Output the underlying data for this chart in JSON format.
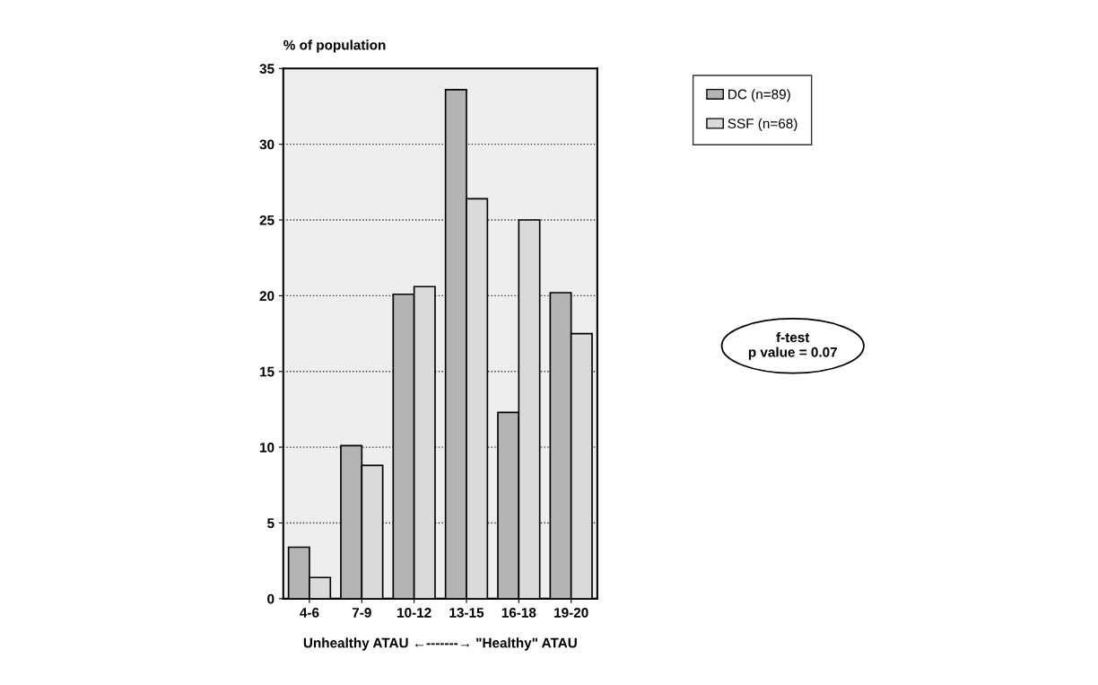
{
  "chart_data": {
    "type": "bar",
    "ylabel": "% of population",
    "xlabel": "Unhealthy ATAU ←-------→ \"Healthy\" ATAU",
    "categories": [
      "4-6",
      "7-9",
      "10-12",
      "13-15",
      "16-18",
      "19-20"
    ],
    "series": [
      {
        "name": "DC (n=89)",
        "color": "#b4b4b4",
        "values": [
          3.4,
          10.1,
          20.1,
          33.6,
          12.3,
          20.2
        ]
      },
      {
        "name": "SSF (n=68)",
        "color": "#dadada",
        "values": [
          1.4,
          8.8,
          20.6,
          26.4,
          25.0,
          17.5
        ]
      }
    ],
    "ylim": [
      0,
      35
    ],
    "yticks": [
      0,
      5,
      10,
      15,
      20,
      25,
      30,
      35
    ],
    "grid": "y",
    "legend": "top right",
    "annotations": [
      "f-test\np value = 0.07"
    ]
  }
}
